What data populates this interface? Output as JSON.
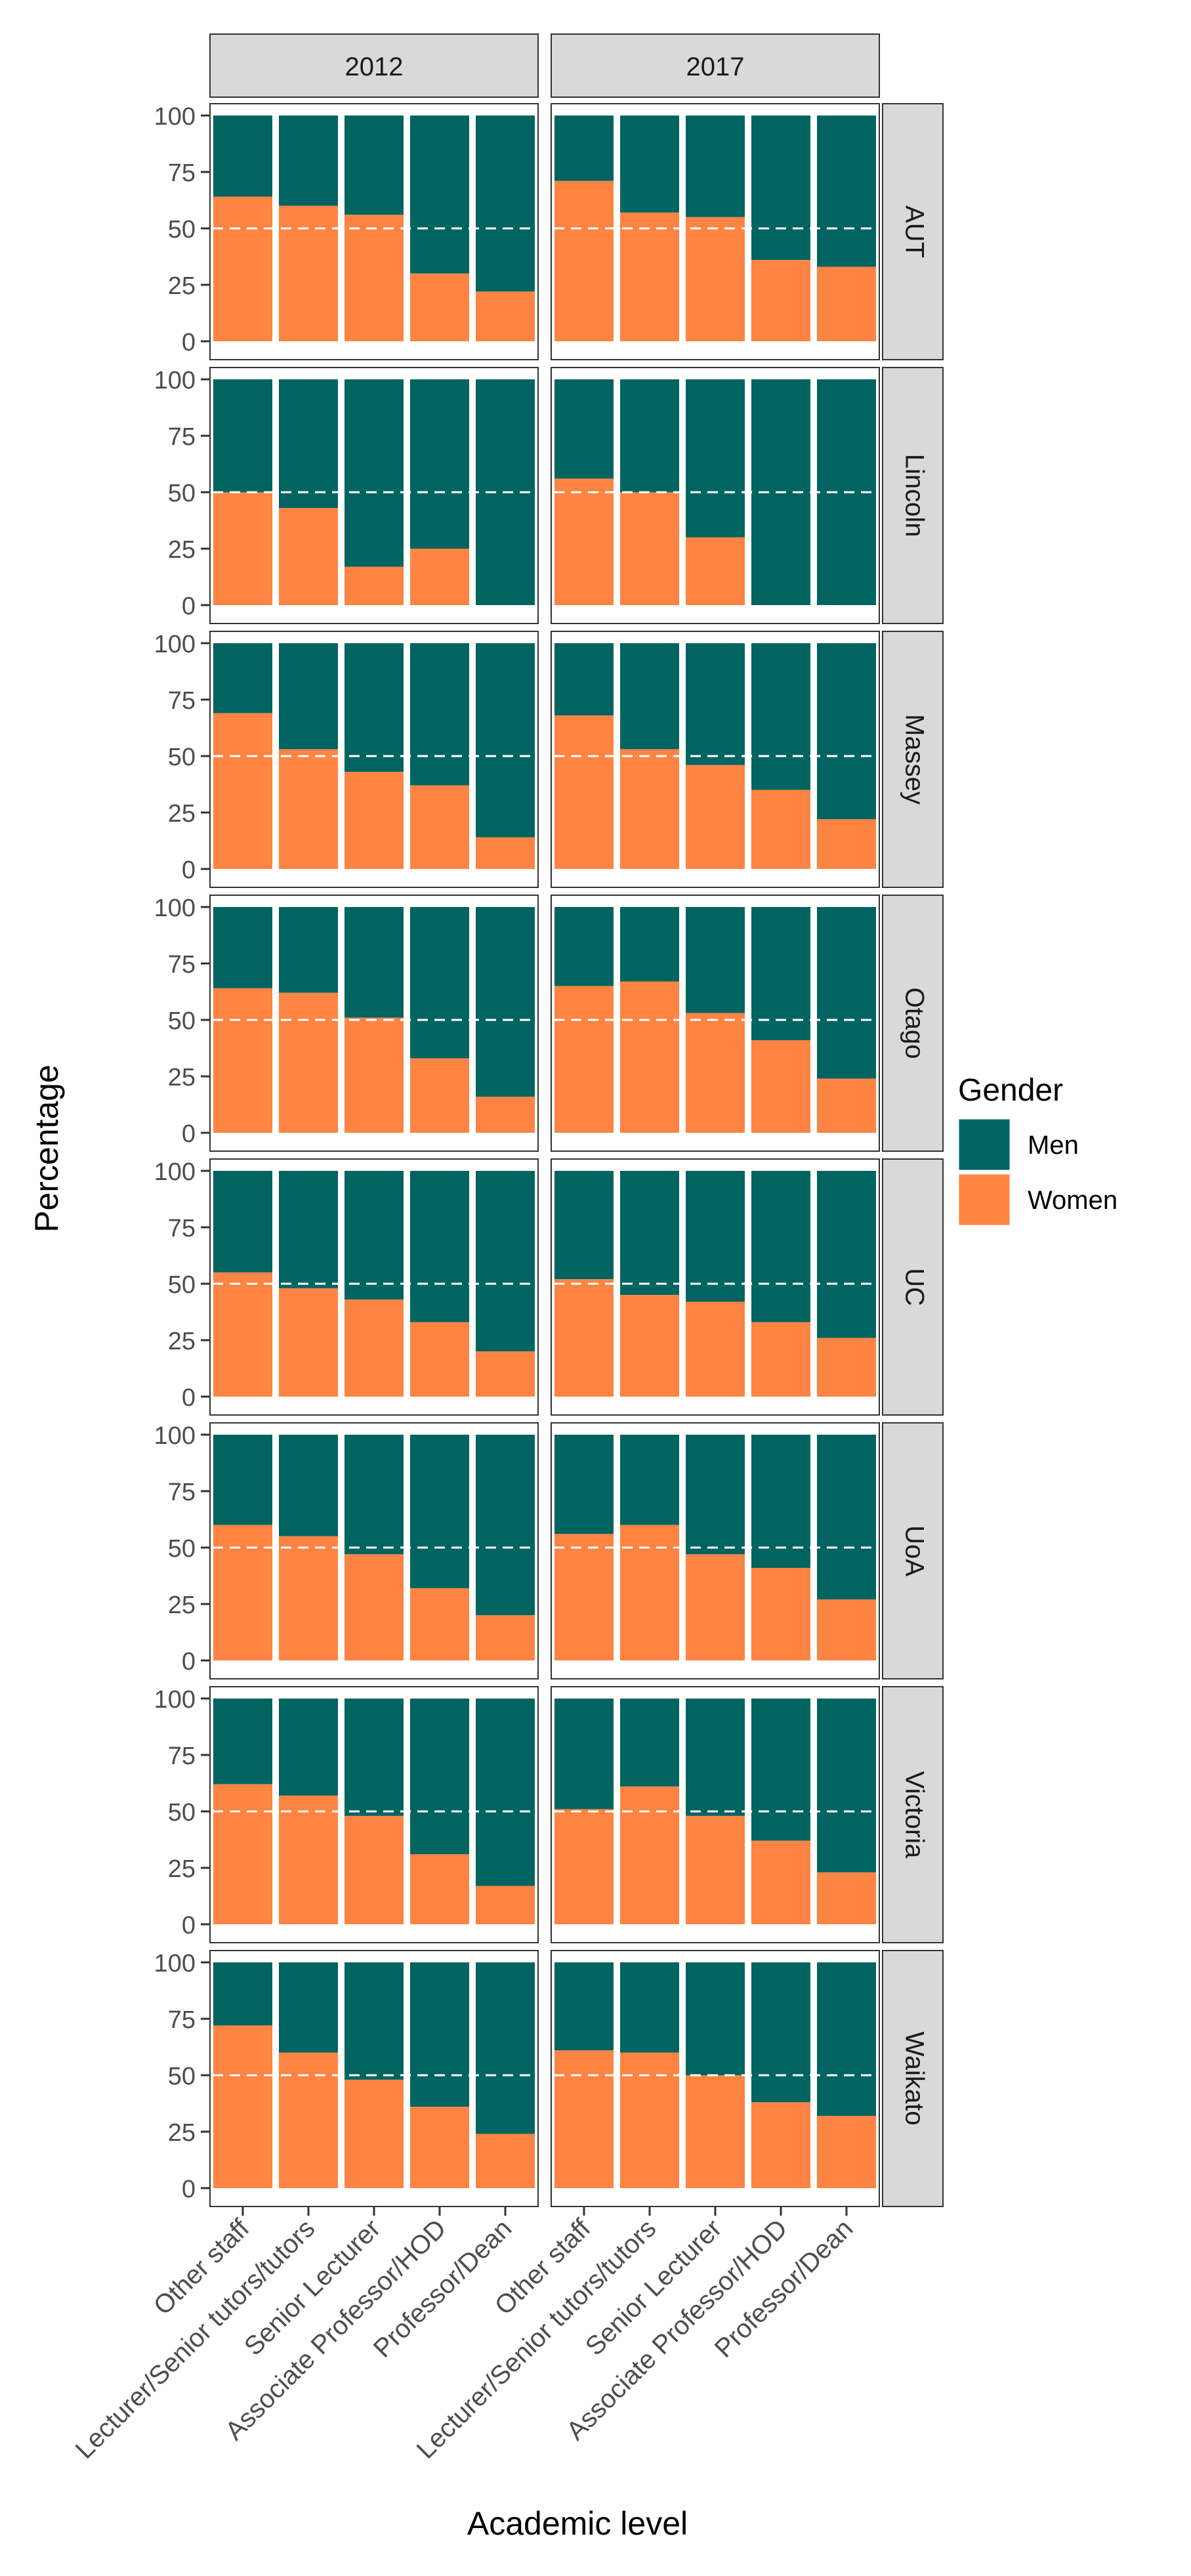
{
  "chart_data": {
    "type": "bar",
    "stacked": true,
    "ylabel": "Percentage",
    "xlabel": "Academic level",
    "ylim": [
      0,
      100
    ],
    "yticks": [
      0,
      25,
      50,
      75,
      100
    ],
    "reference_line": 50,
    "years": [
      "2012",
      "2017"
    ],
    "universities": [
      "AUT",
      "Lincoln",
      "Massey",
      "Otago",
      "UC",
      "UoA",
      "Victoria",
      "Waikato"
    ],
    "categories": [
      "Other staff",
      "Lecturer/Senior tutors/tutors",
      "Senior Lecturer",
      "Associate Professor/HOD",
      "Professor/Dean"
    ],
    "legend": {
      "title": "Gender",
      "entries": [
        {
          "name": "Men",
          "color": "#016460"
        },
        {
          "name": "Women",
          "color": "#FD8443"
        }
      ]
    },
    "women_percent": {
      "AUT": {
        "2012": [
          64,
          60,
          56,
          30,
          22
        ],
        "2017": [
          71,
          57,
          55,
          36,
          33
        ]
      },
      "Lincoln": {
        "2012": [
          50,
          43,
          17,
          25,
          0
        ],
        "2017": [
          56,
          50,
          30,
          0,
          0
        ]
      },
      "Massey": {
        "2012": [
          69,
          53,
          43,
          37,
          14
        ],
        "2017": [
          68,
          53,
          46,
          35,
          22
        ]
      },
      "Otago": {
        "2012": [
          64,
          62,
          51,
          33,
          16
        ],
        "2017": [
          65,
          67,
          53,
          41,
          24
        ]
      },
      "UC": {
        "2012": [
          55,
          48,
          43,
          33,
          20
        ],
        "2017": [
          52,
          45,
          42,
          33,
          26
        ]
      },
      "UoA": {
        "2012": [
          60,
          55,
          47,
          32,
          20
        ],
        "2017": [
          56,
          60,
          47,
          41,
          27
        ]
      },
      "Victoria": {
        "2012": [
          62,
          57,
          48,
          31,
          17
        ],
        "2017": [
          51,
          61,
          48,
          37,
          23
        ]
      },
      "Waikato": {
        "2012": [
          72,
          60,
          48,
          36,
          24
        ],
        "2017": [
          61,
          60,
          50,
          38,
          32
        ]
      }
    }
  }
}
